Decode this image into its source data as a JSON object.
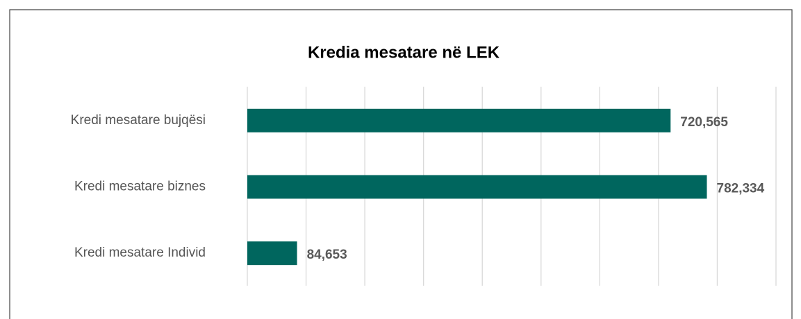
{
  "chart_data": {
    "type": "bar",
    "orientation": "horizontal",
    "title": "Kredia mesatare në LEK",
    "categories": [
      "Kredi mesatare bujqësi",
      "Kredi mesatare biznes",
      "Kredi mesatare Individ"
    ],
    "values": [
      720565,
      782334,
      84653
    ],
    "value_labels": [
      "720,565",
      "782,334",
      "84,653"
    ],
    "color": "#00665e",
    "xlim": [
      0,
      900000
    ],
    "xticks": [
      0,
      100000,
      200000,
      300000,
      400000,
      500000,
      600000,
      700000,
      800000,
      900000
    ],
    "grid": true
  }
}
